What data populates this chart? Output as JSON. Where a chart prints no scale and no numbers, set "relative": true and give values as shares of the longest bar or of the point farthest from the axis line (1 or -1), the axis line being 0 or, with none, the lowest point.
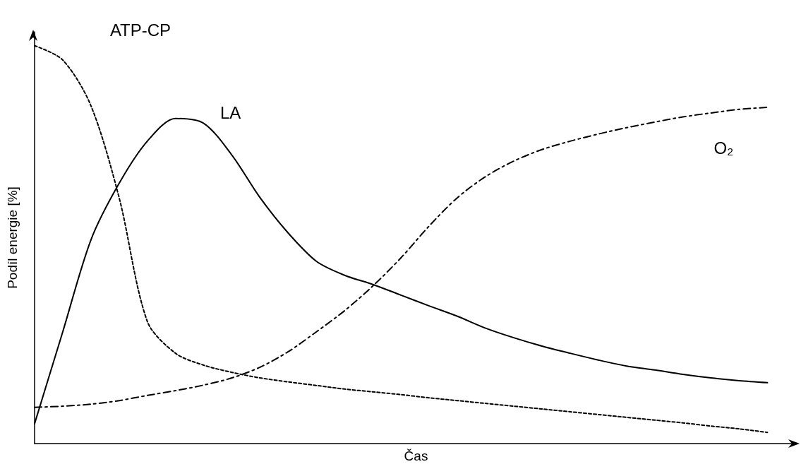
{
  "chart_data": {
    "type": "line",
    "relative": true,
    "xlabel": "Čas",
    "ylabel": "Podíl energie [%]",
    "grid": false,
    "legend": false,
    "marker": "none",
    "tick_labels": false,
    "categories": [
      null,
      null,
      null,
      null,
      null,
      null,
      null,
      null,
      null,
      null,
      null,
      null,
      null,
      null,
      null,
      null,
      null,
      null,
      null,
      null,
      null,
      null,
      null,
      null,
      null,
      null,
      null
    ],
    "series": [
      {
        "name": "ATP-CP",
        "color": "#000000",
        "line_style": "dotted",
        "values": [
          1.0,
          0.964,
          0.849,
          0.618,
          0.307,
          0.227,
          0.197,
          0.179,
          0.165,
          0.155,
          0.146,
          0.137,
          0.13,
          0.123,
          0.115,
          0.108,
          0.101,
          0.094,
          0.087,
          0.08,
          0.073,
          0.066,
          0.059,
          0.052,
          0.044,
          0.037,
          0.028
        ]
      },
      {
        "name": "LA",
        "color": "#000000",
        "line_style": "solid",
        "values": [
          0.05,
          0.281,
          0.512,
          0.654,
          0.76,
          0.817,
          0.805,
          0.725,
          0.618,
          0.529,
          0.458,
          0.423,
          0.4,
          0.373,
          0.346,
          0.32,
          0.29,
          0.266,
          0.245,
          0.227,
          0.21,
          0.195,
          0.185,
          0.174,
          0.165,
          0.158,
          0.153
        ]
      },
      {
        "name": "O₂",
        "color": "#000000",
        "line_style": "dashed",
        "values": [
          0.091,
          0.094,
          0.099,
          0.108,
          0.121,
          0.133,
          0.147,
          0.165,
          0.192,
          0.231,
          0.281,
          0.334,
          0.396,
          0.467,
          0.547,
          0.618,
          0.671,
          0.71,
          0.739,
          0.76,
          0.778,
          0.794,
          0.808,
          0.821,
          0.831,
          0.84,
          0.845
        ]
      }
    ]
  }
}
